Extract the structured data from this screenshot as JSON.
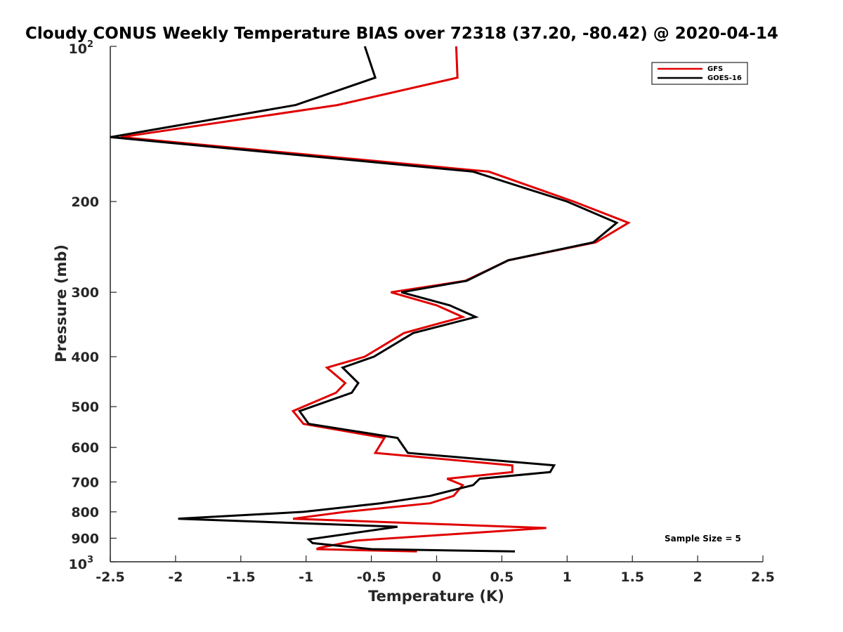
{
  "chart_data": {
    "type": "line",
    "title": "Cloudy CONUS Weekly Temperature BIAS over 72318 (37.20, -80.42) @ 2020-04-14",
    "xlabel": "Temperature (K)",
    "ylabel": "Pressure (mb)",
    "xlim": [
      -2.5,
      2.5
    ],
    "ylim": [
      100,
      1000
    ],
    "y_scale": "log",
    "y_reversed": true,
    "x_ticks": [
      -2.5,
      -2,
      -1.5,
      -1,
      -0.5,
      0,
      0.5,
      1,
      1.5,
      2,
      2.5
    ],
    "x_tick_labels": [
      "-2.5",
      "-2",
      "-1.5",
      "-1",
      "-0.5",
      "0",
      "0.5",
      "1",
      "1.5",
      "2",
      "2.5"
    ],
    "y_ticks": [
      200,
      300,
      400,
      500,
      600,
      700,
      800,
      900
    ],
    "y_tick_labels": [
      "200",
      "300",
      "400",
      "500",
      "600",
      "700",
      "800",
      "900"
    ],
    "y_end_labels": {
      "top_base": "10",
      "top_exp": "2",
      "bottom_base": "10",
      "bottom_exp": "3"
    },
    "grid": false,
    "legend_position": "top-right",
    "annotation": "Sample Size = 5",
    "series": [
      {
        "name": "GFS",
        "color": "#e00000",
        "points": [
          [
            0.15,
            100
          ],
          [
            0.16,
            115
          ],
          [
            -0.76,
            130
          ],
          [
            -2.42,
            150
          ],
          [
            0.4,
            175
          ],
          [
            1.05,
            200
          ],
          [
            1.47,
            220
          ],
          [
            1.22,
            240
          ],
          [
            0.55,
            260
          ],
          [
            0.22,
            285
          ],
          [
            -0.35,
            300
          ],
          [
            0.0,
            318
          ],
          [
            0.2,
            335
          ],
          [
            -0.25,
            360
          ],
          [
            -0.55,
            400
          ],
          [
            -0.84,
            420
          ],
          [
            -0.7,
            450
          ],
          [
            -0.77,
            470
          ],
          [
            -1.1,
            510
          ],
          [
            -1.02,
            540
          ],
          [
            -0.4,
            575
          ],
          [
            -0.47,
            615
          ],
          [
            0.58,
            650
          ],
          [
            0.58,
            670
          ],
          [
            0.08,
            690
          ],
          [
            0.2,
            710
          ],
          [
            0.13,
            745
          ],
          [
            -0.05,
            770
          ],
          [
            -0.7,
            800
          ],
          [
            -1.1,
            825
          ],
          [
            0.3,
            850
          ],
          [
            0.84,
            860
          ],
          [
            -0.62,
            910
          ],
          [
            -0.9,
            940
          ],
          [
            -0.92,
            945
          ],
          [
            -0.15,
            955
          ]
        ]
      },
      {
        "name": "GOES-16",
        "color": "#000000",
        "points": [
          [
            -0.55,
            100
          ],
          [
            -0.47,
            115
          ],
          [
            -1.08,
            130
          ],
          [
            -2.5,
            150
          ],
          [
            0.28,
            175
          ],
          [
            1.0,
            200
          ],
          [
            1.38,
            220
          ],
          [
            1.2,
            240
          ],
          [
            0.55,
            260
          ],
          [
            0.23,
            285
          ],
          [
            -0.27,
            300
          ],
          [
            0.1,
            318
          ],
          [
            0.3,
            335
          ],
          [
            -0.18,
            360
          ],
          [
            -0.48,
            400
          ],
          [
            -0.72,
            420
          ],
          [
            -0.6,
            450
          ],
          [
            -0.65,
            470
          ],
          [
            -1.05,
            510
          ],
          [
            -0.98,
            540
          ],
          [
            -0.3,
            575
          ],
          [
            -0.22,
            615
          ],
          [
            0.9,
            650
          ],
          [
            0.87,
            670
          ],
          [
            0.33,
            690
          ],
          [
            0.28,
            710
          ],
          [
            -0.05,
            745
          ],
          [
            -0.43,
            770
          ],
          [
            -1.02,
            800
          ],
          [
            -1.98,
            825
          ],
          [
            -0.3,
            855
          ],
          [
            -0.98,
            905
          ],
          [
            -0.95,
            920
          ],
          [
            -0.5,
            945
          ],
          [
            0.6,
            955
          ]
        ]
      }
    ]
  }
}
